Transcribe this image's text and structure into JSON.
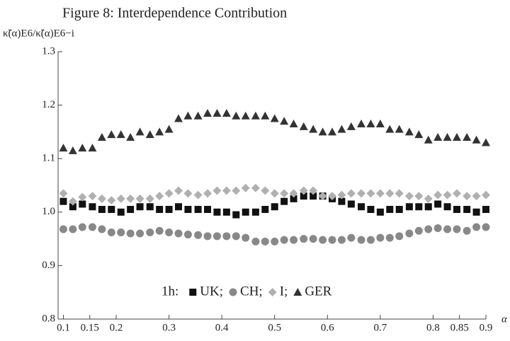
{
  "chart_data": {
    "type": "scatter",
    "title": "Figure 8: Interdependence Contribution",
    "ylabel": "κ̃(α)E6/κ̃(α)E6−i",
    "xlabel": "α",
    "legend_prefix": "1h:",
    "legend_separator": ";",
    "x": [
      0.1,
      0.118,
      0.136,
      0.155,
      0.173,
      0.191,
      0.209,
      0.227,
      0.245,
      0.264,
      0.282,
      0.3,
      0.318,
      0.336,
      0.355,
      0.373,
      0.391,
      0.409,
      0.427,
      0.445,
      0.464,
      0.482,
      0.5,
      0.518,
      0.536,
      0.555,
      0.573,
      0.591,
      0.609,
      0.627,
      0.645,
      0.664,
      0.682,
      0.7,
      0.718,
      0.736,
      0.755,
      0.773,
      0.791,
      0.809,
      0.827,
      0.845,
      0.864,
      0.882,
      0.9
    ],
    "series": [
      {
        "name": "UK",
        "color": "#111111",
        "marker": "square",
        "values": [
          1.02,
          1.01,
          1.015,
          1.01,
          1.005,
          1.005,
          1.0,
          1.005,
          1.01,
          1.01,
          1.005,
          1.005,
          1.01,
          1.005,
          1.005,
          1.005,
          1.0,
          1.0,
          0.995,
          1.0,
          1.0,
          1.005,
          1.01,
          1.02,
          1.025,
          1.03,
          1.03,
          1.03,
          1.025,
          1.02,
          1.015,
          1.01,
          1.005,
          1.0,
          1.005,
          1.005,
          1.01,
          1.01,
          1.01,
          1.015,
          1.01,
          1.005,
          1.005,
          1.0,
          1.005
        ]
      },
      {
        "name": "CH",
        "color": "#888888",
        "marker": "circle",
        "values": [
          0.968,
          0.968,
          0.972,
          0.972,
          0.968,
          0.962,
          0.962,
          0.96,
          0.96,
          0.962,
          0.965,
          0.962,
          0.96,
          0.958,
          0.957,
          0.955,
          0.955,
          0.955,
          0.955,
          0.952,
          0.945,
          0.945,
          0.945,
          0.948,
          0.948,
          0.95,
          0.95,
          0.948,
          0.948,
          0.948,
          0.952,
          0.948,
          0.948,
          0.952,
          0.952,
          0.955,
          0.96,
          0.965,
          0.968,
          0.97,
          0.968,
          0.968,
          0.965,
          0.972,
          0.972
        ]
      },
      {
        "name": "I",
        "color": "#b0b0b0",
        "marker": "diamond",
        "values": [
          1.035,
          1.02,
          1.028,
          1.03,
          1.025,
          1.022,
          1.025,
          1.025,
          1.025,
          1.025,
          1.03,
          1.035,
          1.04,
          1.035,
          1.032,
          1.035,
          1.04,
          1.04,
          1.04,
          1.045,
          1.045,
          1.04,
          1.035,
          1.035,
          1.035,
          1.04,
          1.04,
          1.03,
          1.03,
          1.032,
          1.035,
          1.035,
          1.035,
          1.035,
          1.035,
          1.035,
          1.03,
          1.03,
          1.025,
          1.032,
          1.032,
          1.035,
          1.03,
          1.03,
          1.032
        ]
      },
      {
        "name": "GER",
        "color": "#333333",
        "marker": "triangle",
        "values": [
          1.12,
          1.115,
          1.12,
          1.12,
          1.14,
          1.145,
          1.145,
          1.14,
          1.15,
          1.145,
          1.15,
          1.155,
          1.175,
          1.18,
          1.18,
          1.185,
          1.185,
          1.185,
          1.18,
          1.18,
          1.18,
          1.18,
          1.175,
          1.17,
          1.165,
          1.16,
          1.155,
          1.15,
          1.15,
          1.155,
          1.16,
          1.165,
          1.165,
          1.165,
          1.155,
          1.155,
          1.15,
          1.145,
          1.135,
          1.14,
          1.14,
          1.14,
          1.14,
          1.135,
          1.13
        ]
      }
    ],
    "xlim": [
      0.09,
      0.9
    ],
    "ylim": [
      0.8,
      1.3
    ],
    "xticks": [
      0.1,
      0.15,
      0.2,
      0.3,
      0.4,
      0.5,
      0.6,
      0.7,
      0.8,
      0.85,
      0.9
    ],
    "yticks": [
      0.8,
      0.9,
      {
        "value": 1,
        "label": "1.0"
      },
      1.1,
      1.2,
      1.3
    ],
    "grid": false
  }
}
